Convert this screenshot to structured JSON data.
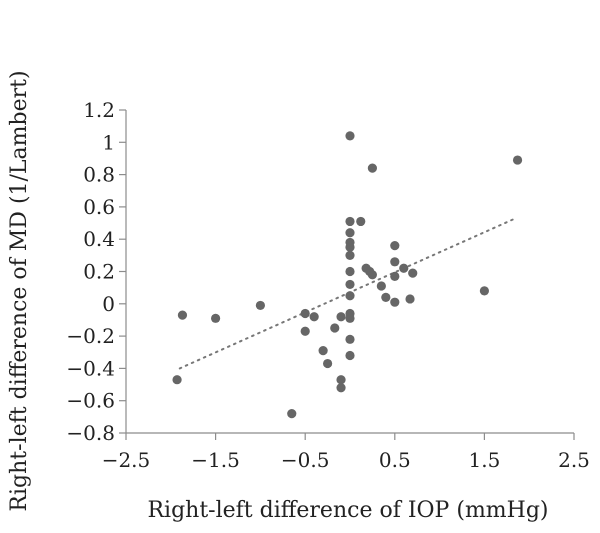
{
  "chart_data": {
    "type": "scatter",
    "title": "",
    "xlabel": "Right-left difference of IOP (mmHg)",
    "ylabel": "Right-left difference of MD (1/Lambert)",
    "xlim": [
      -2.5,
      2.5
    ],
    "ylim": [
      -0.8,
      1.2
    ],
    "x_ticks": [
      -2.5,
      -1.5,
      -0.5,
      0.5,
      1.5,
      2.5
    ],
    "x_tick_labels": [
      "−2.5",
      "−1.5",
      "−0.5",
      "0.5",
      "1.5",
      "2.5"
    ],
    "y_ticks": [
      -0.8,
      -0.6,
      -0.4,
      -0.2,
      0,
      0.2,
      0.4,
      0.6,
      0.8,
      1,
      1.2
    ],
    "y_tick_labels": [
      "−0.8",
      "−0.6",
      "−0.4",
      "−0.2",
      "0",
      "0.2",
      "0.4",
      "0.6",
      "0.8",
      "1",
      "1.2"
    ],
    "grid": false,
    "point_color": "#666666",
    "trendline": {
      "style": "dotted",
      "color": "#777777",
      "x": [
        -1.9,
        1.85
      ],
      "y": [
        -0.4,
        0.53
      ]
    },
    "points": [
      {
        "x": -1.93,
        "y": -0.47
      },
      {
        "x": -1.87,
        "y": -0.07
      },
      {
        "x": -1.5,
        "y": -0.09
      },
      {
        "x": -1.0,
        "y": -0.01
      },
      {
        "x": -0.65,
        "y": -0.68
      },
      {
        "x": -0.5,
        "y": -0.06
      },
      {
        "x": -0.5,
        "y": -0.17
      },
      {
        "x": -0.4,
        "y": -0.08
      },
      {
        "x": -0.3,
        "y": -0.29
      },
      {
        "x": -0.25,
        "y": -0.37
      },
      {
        "x": -0.17,
        "y": -0.15
      },
      {
        "x": -0.1,
        "y": -0.08
      },
      {
        "x": -0.1,
        "y": -0.47
      },
      {
        "x": -0.1,
        "y": -0.52
      },
      {
        "x": 0.0,
        "y": 1.04
      },
      {
        "x": 0.0,
        "y": 0.51
      },
      {
        "x": 0.0,
        "y": 0.44
      },
      {
        "x": 0.0,
        "y": 0.38
      },
      {
        "x": 0.0,
        "y": 0.35
      },
      {
        "x": 0.0,
        "y": 0.3
      },
      {
        "x": 0.0,
        "y": 0.2
      },
      {
        "x": 0.0,
        "y": 0.12
      },
      {
        "x": 0.0,
        "y": 0.05
      },
      {
        "x": 0.0,
        "y": -0.06
      },
      {
        "x": 0.0,
        "y": -0.09
      },
      {
        "x": 0.0,
        "y": -0.22
      },
      {
        "x": 0.0,
        "y": -0.32
      },
      {
        "x": 0.12,
        "y": 0.51
      },
      {
        "x": 0.18,
        "y": 0.22
      },
      {
        "x": 0.22,
        "y": 0.2
      },
      {
        "x": 0.25,
        "y": 0.84
      },
      {
        "x": 0.25,
        "y": 0.18
      },
      {
        "x": 0.35,
        "y": 0.11
      },
      {
        "x": 0.4,
        "y": 0.04
      },
      {
        "x": 0.5,
        "y": 0.36
      },
      {
        "x": 0.5,
        "y": 0.26
      },
      {
        "x": 0.5,
        "y": 0.17
      },
      {
        "x": 0.5,
        "y": 0.01
      },
      {
        "x": 0.6,
        "y": 0.22
      },
      {
        "x": 0.67,
        "y": 0.03
      },
      {
        "x": 0.7,
        "y": 0.19
      },
      {
        "x": 1.5,
        "y": 0.08
      },
      {
        "x": 1.87,
        "y": 0.89
      }
    ]
  }
}
